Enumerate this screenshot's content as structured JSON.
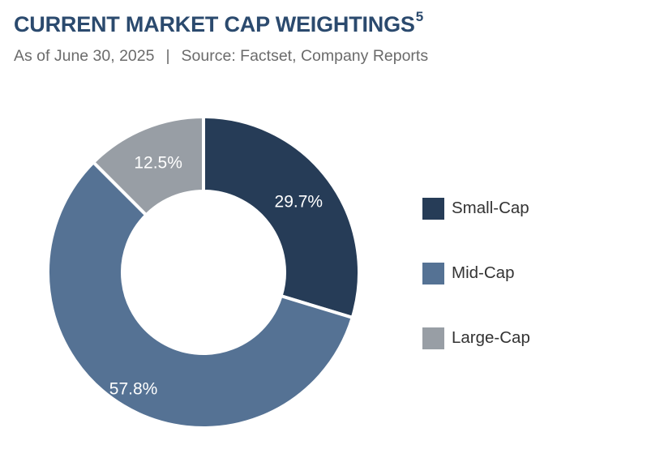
{
  "header": {
    "title": "CURRENT MARKET CAP WEIGHTINGS",
    "title_footnote": "5",
    "subtitle_date": "As of June 30, 2025",
    "subtitle_separator": "|",
    "subtitle_source": "Source: Factset, Company Reports"
  },
  "chart_data": {
    "type": "pie",
    "variant": "donut",
    "title": "CURRENT MARKET CAP WEIGHTINGS",
    "subtitle": "As of June 30, 2025 | Source: Factset, Company Reports",
    "categories": [
      "Small-Cap",
      "Mid-Cap",
      "Large-Cap"
    ],
    "values": [
      29.7,
      57.8,
      12.5
    ],
    "labels": [
      "29.7%",
      "57.8%",
      "12.5%"
    ],
    "colors": [
      "#263c57",
      "#557294",
      "#989ea5"
    ],
    "start_angle": "12 o'clock, clockwise",
    "legend_position": "right"
  }
}
